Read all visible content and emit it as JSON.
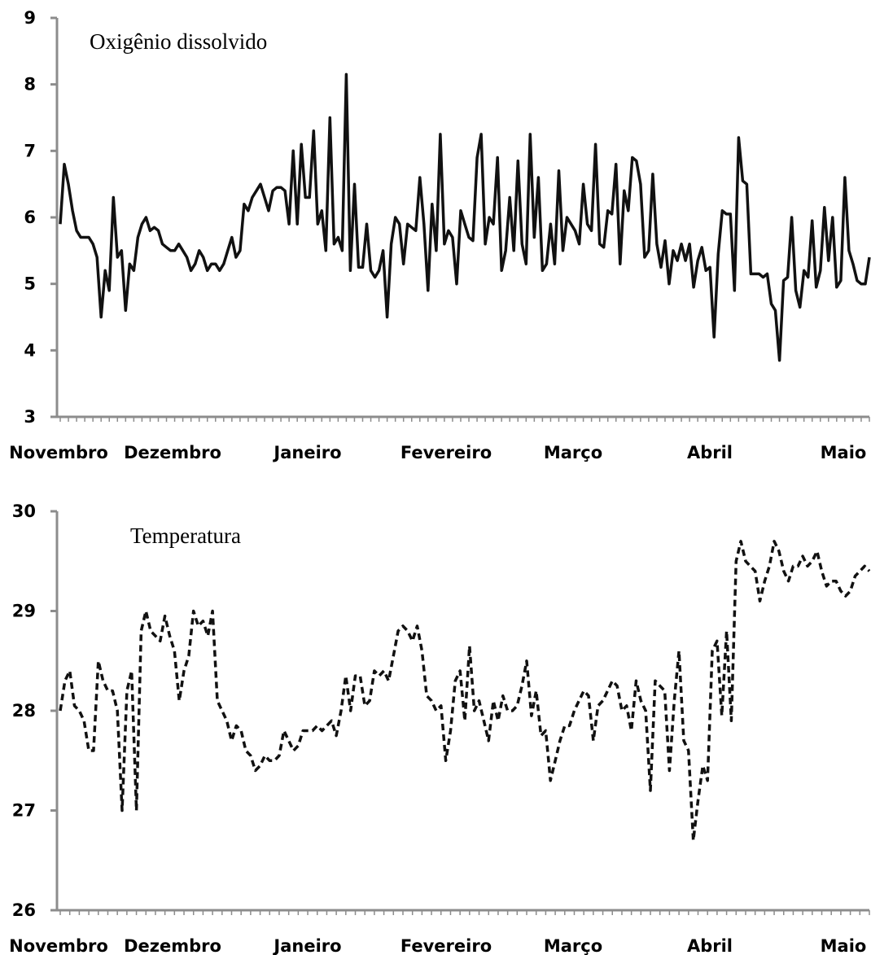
{
  "chart_data": [
    {
      "type": "line",
      "title": "Oxigênio dissolvido",
      "xlabel": "",
      "ylabel": "",
      "ylim": [
        3,
        9
      ],
      "yticks": [
        3,
        4,
        5,
        6,
        7,
        8,
        9
      ],
      "month_labels": [
        "Novembro",
        "Dezembro",
        "Janeiro",
        "Fevereiro",
        "Março",
        "Abril",
        "Maio"
      ],
      "x_range_days": [
        0,
        211
      ],
      "line_style": "solid",
      "series": [
        {
          "values": [
            5.9,
            6.8,
            6.5,
            6.1,
            5.8,
            5.7,
            5.7,
            5.7,
            5.6,
            5.4,
            4.5,
            5.2,
            4.9,
            6.3,
            5.4,
            5.5,
            4.6,
            5.3,
            5.2,
            5.7,
            5.9,
            6.0,
            5.8,
            5.85,
            5.8,
            5.6,
            5.55,
            5.5,
            5.5,
            5.6,
            5.5,
            5.4,
            5.2,
            5.3,
            5.5,
            5.4,
            5.2,
            5.3,
            5.3,
            5.2,
            5.3,
            5.5,
            5.7,
            5.4,
            5.5,
            6.2,
            6.1,
            6.3,
            6.4,
            6.5,
            6.3,
            6.1,
            6.4,
            6.45,
            6.45,
            6.4,
            5.9,
            7.0,
            5.9,
            7.1,
            6.3,
            6.3,
            7.3,
            5.9,
            6.1,
            5.5,
            7.5,
            5.6,
            5.7,
            5.5,
            8.15,
            5.2,
            6.5,
            5.25,
            5.25,
            5.9,
            5.2,
            5.1,
            5.2,
            5.5,
            4.5,
            5.6,
            6.0,
            5.9,
            5.3,
            5.9,
            5.85,
            5.8,
            6.6,
            5.9,
            4.9,
            6.2,
            5.5,
            7.25,
            5.6,
            5.8,
            5.7,
            5.0,
            6.1,
            5.9,
            5.7,
            5.65,
            6.9,
            7.25,
            5.6,
            6.0,
            5.9,
            6.9,
            5.2,
            5.5,
            6.3,
            5.5,
            6.85,
            5.6,
            5.3,
            7.25,
            5.7,
            6.6,
            5.2,
            5.3,
            5.9,
            5.3,
            6.7,
            5.5,
            6.0,
            5.9,
            5.8,
            5.6,
            6.5,
            5.9,
            5.8,
            7.1,
            5.6,
            5.55,
            6.1,
            6.05,
            6.8,
            5.3,
            6.4,
            6.1,
            6.9,
            6.85,
            6.5,
            5.4,
            5.5,
            6.65,
            5.6,
            5.25,
            5.65,
            5.0,
            5.5,
            5.35,
            5.6,
            5.35,
            5.6,
            4.95,
            5.35,
            5.55,
            5.2,
            5.25,
            4.2,
            5.45,
            6.1,
            6.05,
            6.05,
            4.9,
            7.2,
            6.55,
            6.5,
            5.15,
            5.15,
            5.15,
            5.1,
            5.15,
            4.7,
            4.6,
            3.85,
            5.05,
            5.1,
            6.0,
            4.9,
            4.65,
            5.2,
            5.1,
            5.95,
            4.95,
            5.2,
            6.15,
            5.35,
            6.0,
            4.95,
            5.05,
            6.6,
            5.5,
            5.3,
            5.05,
            5.0,
            5.0,
            5.4
          ]
        }
      ]
    },
    {
      "type": "line",
      "title": "Temperatura",
      "xlabel": "",
      "ylabel": "",
      "ylim": [
        26,
        30
      ],
      "yticks": [
        26,
        27,
        28,
        29,
        30
      ],
      "month_labels": [
        "Novembro",
        "Dezembro",
        "Janeiro",
        "Fevereiro",
        "Março",
        "Abril",
        "Maio"
      ],
      "x_range_days": [
        0,
        211
      ],
      "line_style": "dashed",
      "series": [
        {
          "values": [
            28.0,
            28.3,
            28.4,
            28.05,
            28.0,
            27.9,
            27.6,
            27.6,
            28.5,
            28.3,
            28.2,
            28.2,
            28.0,
            27.0,
            28.2,
            28.4,
            27.0,
            28.8,
            29.0,
            28.8,
            28.75,
            28.7,
            28.95,
            28.75,
            28.6,
            28.1,
            28.4,
            28.55,
            29.0,
            28.85,
            28.9,
            28.75,
            29.0,
            28.1,
            28.0,
            27.9,
            27.7,
            27.85,
            27.8,
            27.6,
            27.55,
            27.4,
            27.45,
            27.55,
            27.5,
            27.5,
            27.55,
            27.8,
            27.7,
            27.6,
            27.65,
            27.8,
            27.8,
            27.8,
            27.85,
            27.8,
            27.85,
            27.9,
            27.75,
            28.0,
            28.35,
            28.0,
            28.35,
            28.35,
            28.05,
            28.1,
            28.4,
            28.35,
            28.4,
            28.3,
            28.55,
            28.8,
            28.85,
            28.8,
            28.7,
            28.85,
            28.6,
            28.15,
            28.1,
            28.0,
            28.05,
            27.5,
            27.8,
            28.3,
            28.4,
            27.9,
            28.65,
            28.0,
            28.1,
            27.9,
            27.7,
            28.1,
            27.9,
            28.15,
            28.0,
            28.0,
            28.05,
            28.25,
            28.5,
            27.95,
            28.2,
            27.75,
            27.8,
            27.3,
            27.5,
            27.7,
            27.85,
            27.85,
            28.0,
            28.1,
            28.2,
            28.15,
            27.7,
            28.05,
            28.1,
            28.2,
            28.3,
            28.25,
            28.0,
            28.05,
            27.8,
            28.3,
            28.1,
            28.0,
            27.2,
            28.3,
            28.25,
            28.2,
            27.4,
            28.1,
            28.6,
            27.7,
            27.6,
            26.7,
            27.1,
            27.45,
            27.3,
            28.6,
            28.7,
            27.95,
            28.8,
            27.9,
            29.5,
            29.7,
            29.5,
            29.45,
            29.4,
            29.1,
            29.3,
            29.45,
            29.7,
            29.6,
            29.4,
            29.3,
            29.45,
            29.45,
            29.55,
            29.45,
            29.5,
            29.6,
            29.4,
            29.25,
            29.3,
            29.3,
            29.2,
            29.15,
            29.2,
            29.35,
            29.4,
            29.45,
            29.4
          ]
        }
      ]
    }
  ]
}
